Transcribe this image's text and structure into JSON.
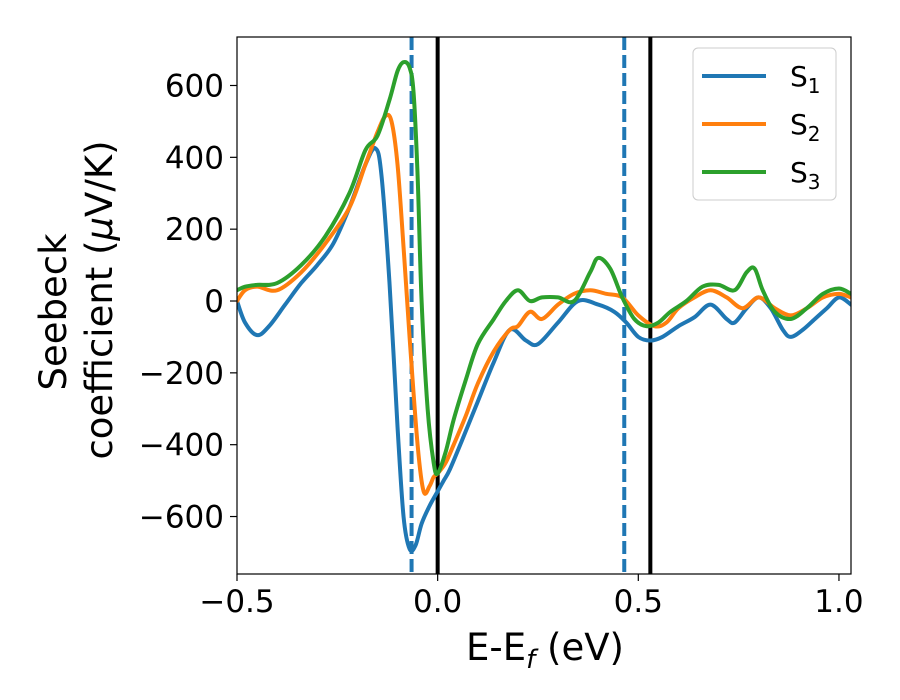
{
  "chart_data": {
    "type": "line",
    "title": "",
    "xlabel": "E-E",
    "xlabel_sub": "f",
    "xlabel_unit": " (eV)",
    "ylabel_line1": "Seebeck",
    "ylabel_line2_pre": "coefficient  (",
    "ylabel_mu": "μ",
    "ylabel_line2_post": "V/K)",
    "xlim": [
      -0.5,
      1.03
    ],
    "ylim": [
      -760,
      735
    ],
    "xticks": [
      -0.5,
      0.0,
      0.5,
      1.0
    ],
    "xtick_labels": [
      "−0.5",
      "0.0",
      "0.5",
      "1.0"
    ],
    "yticks": [
      -600,
      -400,
      -200,
      0,
      200,
      400,
      600
    ],
    "ytick_labels": [
      "−600",
      "−400",
      "−200",
      "0",
      "200",
      "400",
      "600"
    ],
    "grid": false,
    "legend_position": "top-right",
    "vlines": [
      {
        "x": -0.065,
        "color": "#1f77b4",
        "style": "dashed"
      },
      {
        "x": 0.465,
        "color": "#1f77b4",
        "style": "dashed"
      },
      {
        "x": 0.0,
        "color": "#000000",
        "style": "solid"
      },
      {
        "x": 0.53,
        "color": "#000000",
        "style": "solid"
      }
    ],
    "series": [
      {
        "name": "S",
        "sub": "1",
        "color": "#1f77b4",
        "x": [
          -0.5,
          -0.48,
          -0.45,
          -0.42,
          -0.38,
          -0.34,
          -0.3,
          -0.26,
          -0.22,
          -0.18,
          -0.155,
          -0.14,
          -0.12,
          -0.1,
          -0.085,
          -0.07,
          -0.055,
          -0.04,
          -0.02,
          0.0,
          0.015,
          0.03,
          0.06,
          0.1,
          0.14,
          0.18,
          0.22,
          0.25,
          0.3,
          0.35,
          0.4,
          0.44,
          0.47,
          0.5,
          0.53,
          0.56,
          0.6,
          0.64,
          0.68,
          0.72,
          0.74,
          0.77,
          0.8,
          0.83,
          0.86,
          0.88,
          0.91,
          0.94,
          0.97,
          1.0,
          1.03
        ],
        "y": [
          0,
          -60,
          -95,
          -70,
          -10,
          50,
          100,
          160,
          260,
          380,
          425,
          350,
          50,
          -350,
          -600,
          -690,
          -680,
          -620,
          -570,
          -530,
          -500,
          -470,
          -390,
          -280,
          -170,
          -80,
          -110,
          -120,
          -60,
          0,
          -10,
          -30,
          -60,
          -100,
          -110,
          -100,
          -70,
          -45,
          -10,
          -50,
          -60,
          -20,
          10,
          -20,
          -80,
          -100,
          -80,
          -50,
          -20,
          10,
          -10
        ]
      },
      {
        "name": "S",
        "sub": "2",
        "color": "#ff7f0e",
        "x": [
          -0.5,
          -0.48,
          -0.45,
          -0.4,
          -0.34,
          -0.28,
          -0.22,
          -0.18,
          -0.15,
          -0.13,
          -0.115,
          -0.1,
          -0.085,
          -0.07,
          -0.05,
          -0.035,
          -0.02,
          -0.01,
          0.0,
          0.02,
          0.04,
          0.07,
          0.1,
          0.14,
          0.18,
          0.2,
          0.23,
          0.26,
          0.3,
          0.34,
          0.38,
          0.42,
          0.46,
          0.5,
          0.54,
          0.57,
          0.6,
          0.64,
          0.68,
          0.72,
          0.76,
          0.8,
          0.84,
          0.88,
          0.92,
          0.96,
          1.0,
          1.03
        ],
        "y": [
          0,
          30,
          40,
          30,
          80,
          160,
          260,
          380,
          470,
          515,
          500,
          380,
          150,
          -100,
          -400,
          -530,
          -515,
          -490,
          -480,
          -450,
          -400,
          -320,
          -230,
          -140,
          -80,
          -70,
          -30,
          -50,
          -10,
          20,
          30,
          20,
          10,
          -40,
          -70,
          -60,
          -20,
          10,
          30,
          10,
          -20,
          10,
          -20,
          -40,
          -20,
          10,
          20,
          10
        ]
      },
      {
        "name": "S",
        "sub": "3",
        "color": "#2ca02c",
        "x": [
          -0.5,
          -0.48,
          -0.45,
          -0.4,
          -0.34,
          -0.28,
          -0.22,
          -0.18,
          -0.15,
          -0.12,
          -0.1,
          -0.085,
          -0.07,
          -0.06,
          -0.05,
          -0.04,
          -0.025,
          -0.01,
          0.0,
          0.02,
          0.04,
          0.07,
          0.1,
          0.14,
          0.17,
          0.2,
          0.23,
          0.26,
          0.3,
          0.34,
          0.38,
          0.4,
          0.43,
          0.46,
          0.49,
          0.52,
          0.55,
          0.58,
          0.62,
          0.66,
          0.7,
          0.74,
          0.77,
          0.79,
          0.81,
          0.84,
          0.88,
          0.92,
          0.96,
          1.0,
          1.03
        ],
        "y": [
          30,
          40,
          45,
          50,
          100,
          180,
          300,
          420,
          460,
          560,
          640,
          665,
          650,
          580,
          350,
          0,
          -300,
          -450,
          -480,
          -420,
          -330,
          -220,
          -120,
          -50,
          0,
          30,
          0,
          10,
          10,
          0,
          80,
          120,
          90,
          10,
          -50,
          -70,
          -60,
          -30,
          0,
          40,
          45,
          30,
          80,
          90,
          30,
          -30,
          -50,
          -20,
          20,
          35,
          20
        ]
      }
    ]
  }
}
